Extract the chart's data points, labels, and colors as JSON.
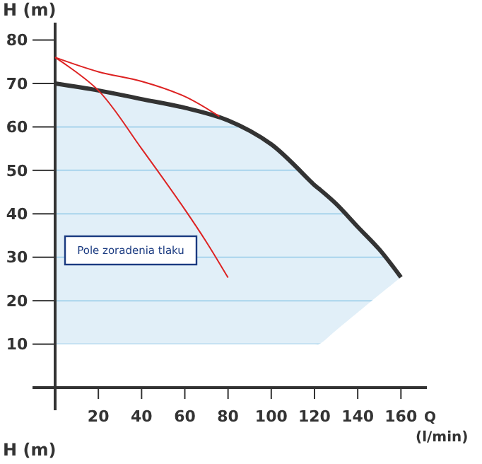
{
  "chart_data": {
    "type": "line",
    "ylabel": "H (m)",
    "xlabel": "Q (l/min)",
    "xlim": [
      0,
      172
    ],
    "ylim": [
      0,
      84
    ],
    "xticks": [
      {
        "value": 0,
        "label": null
      },
      20,
      40,
      60,
      80,
      100,
      120,
      140,
      160
    ],
    "yticks": [
      {
        "value": 0,
        "label": null
      },
      10,
      20,
      30,
      40,
      50,
      60,
      70,
      80
    ],
    "grid": "y",
    "marker": "none",
    "line_style": "solid",
    "annotations": [
      "Pole zoradenia tlaku",
      "H (m)"
    ],
    "series": [
      {
        "color": "#333333",
        "x": [
          0,
          20,
          40,
          60,
          80,
          100,
          120,
          122,
          130,
          140,
          150,
          160
        ],
        "values": [
          70,
          68.4,
          66.4,
          64.4,
          61.5,
          56,
          46.6,
          45.8,
          42.3,
          37,
          31.8,
          25.4
        ],
        "lower": [
          10,
          10,
          10,
          10,
          10,
          10,
          10,
          10,
          13.2,
          17.3,
          21.4,
          25.4
        ],
        "upper": [
          70,
          68.4,
          66.4,
          64.4,
          61.5,
          56,
          46.6,
          45.8,
          42.3,
          37,
          31.8,
          25.4
        ]
      },
      {
        "color": "#dd2222",
        "x": [
          0,
          20,
          40,
          60,
          76
        ],
        "values": [
          76,
          72.7,
          70.5,
          67,
          62.4
        ]
      },
      {
        "color": "#dd2222",
        "x": [
          0,
          20,
          40,
          60,
          70,
          80
        ],
        "values": [
          76,
          68.4,
          55,
          41,
          33.5,
          25.3
        ]
      }
    ]
  }
}
